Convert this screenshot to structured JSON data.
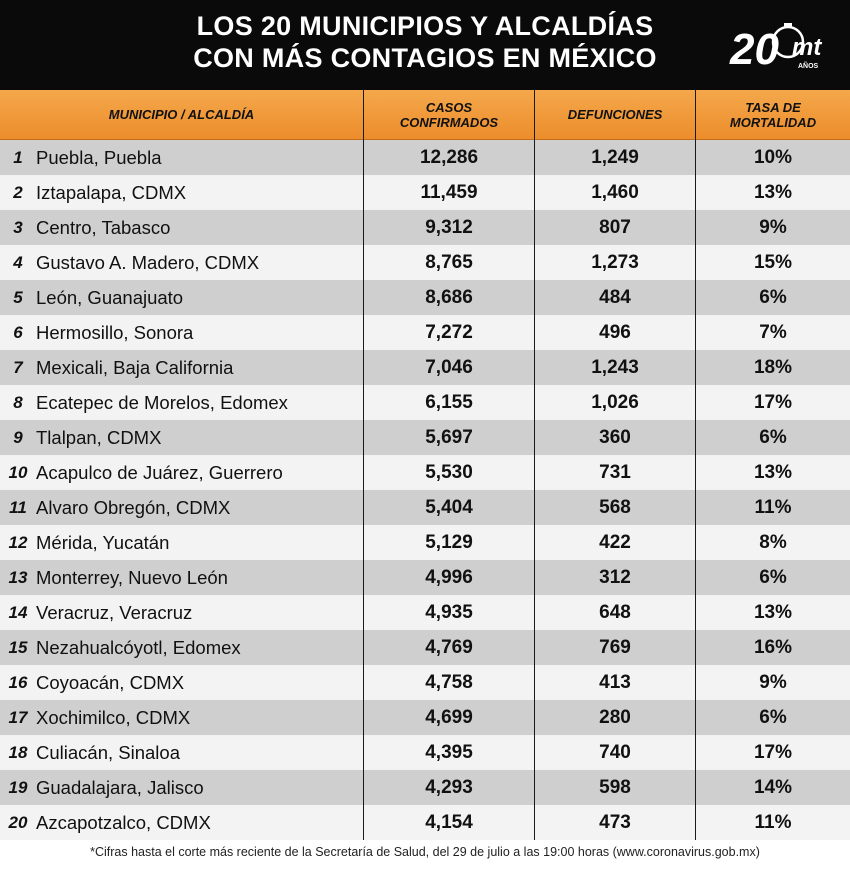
{
  "header": {
    "title_line1": "LOS 20 MUNICIPIOS Y ALCALDÍAS",
    "title_line2": "CON MÁS CONTAGIOS EN MÉXICO",
    "logo_number": "20",
    "logo_brand": "mt",
    "logo_sub": "AÑOS"
  },
  "colors": {
    "header_bg": "#0a0a0a",
    "table_header_orange": "#ee922f",
    "row_dark": "#cfcfcf",
    "row_light": "#f3f3f3"
  },
  "chart_data": {
    "type": "table",
    "title": "LOS 20 MUNICIPIOS Y ALCALDÍAS CON MÁS CONTAGIOS EN MÉXICO",
    "columns": [
      "MUNICIPIO / ALCALDÍA",
      "CASOS\nCONFIRMADOS",
      "DEFUNCIONES",
      "TASA DE\nMORTALIDAD"
    ],
    "rows": [
      {
        "rank": "1",
        "municipio": "Puebla, Puebla",
        "casos": "12,286",
        "defunciones": "1,249",
        "tasa": "10%"
      },
      {
        "rank": "2",
        "municipio": "Iztapalapa, CDMX",
        "casos": "11,459",
        "defunciones": "1,460",
        "tasa": "13%"
      },
      {
        "rank": "3",
        "municipio": "Centro, Tabasco",
        "casos": "9,312",
        "defunciones": "807",
        "tasa": "9%"
      },
      {
        "rank": "4",
        "municipio": "Gustavo A. Madero, CDMX",
        "casos": "8,765",
        "defunciones": "1,273",
        "tasa": "15%"
      },
      {
        "rank": "5",
        "municipio": "León, Guanajuato",
        "casos": "8,686",
        "defunciones": "484",
        "tasa": "6%"
      },
      {
        "rank": "6",
        "municipio": "Hermosillo, Sonora",
        "casos": "7,272",
        "defunciones": "496",
        "tasa": "7%"
      },
      {
        "rank": "7",
        "municipio": "Mexicali, Baja California",
        "casos": "7,046",
        "defunciones": "1,243",
        "tasa": "18%"
      },
      {
        "rank": "8",
        "municipio": "Ecatepec de Morelos, Edomex",
        "casos": "6,155",
        "defunciones": "1,026",
        "tasa": "17%"
      },
      {
        "rank": "9",
        "municipio": "Tlalpan, CDMX",
        "casos": "5,697",
        "defunciones": "360",
        "tasa": "6%"
      },
      {
        "rank": "10",
        "municipio": "Acapulco de Juárez, Guerrero",
        "casos": "5,530",
        "defunciones": "731",
        "tasa": "13%"
      },
      {
        "rank": "11",
        "municipio": "Alvaro Obregón, CDMX",
        "casos": "5,404",
        "defunciones": "568",
        "tasa": "11%"
      },
      {
        "rank": "12",
        "municipio": "Mérida, Yucatán",
        "casos": "5,129",
        "defunciones": "422",
        "tasa": "8%"
      },
      {
        "rank": "13",
        "municipio": "Monterrey, Nuevo León",
        "casos": "4,996",
        "defunciones": "312",
        "tasa": "6%"
      },
      {
        "rank": "14",
        "municipio": "Veracruz, Veracruz",
        "casos": "4,935",
        "defunciones": "648",
        "tasa": "13%"
      },
      {
        "rank": "15",
        "municipio": "Nezahualcóyotl, Edomex",
        "casos": "4,769",
        "defunciones": "769",
        "tasa": "16%"
      },
      {
        "rank": "16",
        "municipio": "Coyoacán, CDMX",
        "casos": "4,758",
        "defunciones": "413",
        "tasa": "9%"
      },
      {
        "rank": "17",
        "municipio": "Xochimilco, CDMX",
        "casos": "4,699",
        "defunciones": "280",
        "tasa": "6%"
      },
      {
        "rank": "18",
        "municipio": "Culiacán, Sinaloa",
        "casos": "4,395",
        "defunciones": "740",
        "tasa": "17%"
      },
      {
        "rank": "19",
        "municipio": "Guadalajara, Jalisco",
        "casos": "4,293",
        "defunciones": "598",
        "tasa": "14%"
      },
      {
        "rank": "20",
        "municipio": "Azcapotzalco, CDMX",
        "casos": "4,154",
        "defunciones": "473",
        "tasa": "11%"
      }
    ]
  },
  "footnote": "*Cifras hasta el corte más reciente de la Secretaría de Salud, del 29 de julio a las 19:00 horas (www.coronavirus.gob.mx)"
}
